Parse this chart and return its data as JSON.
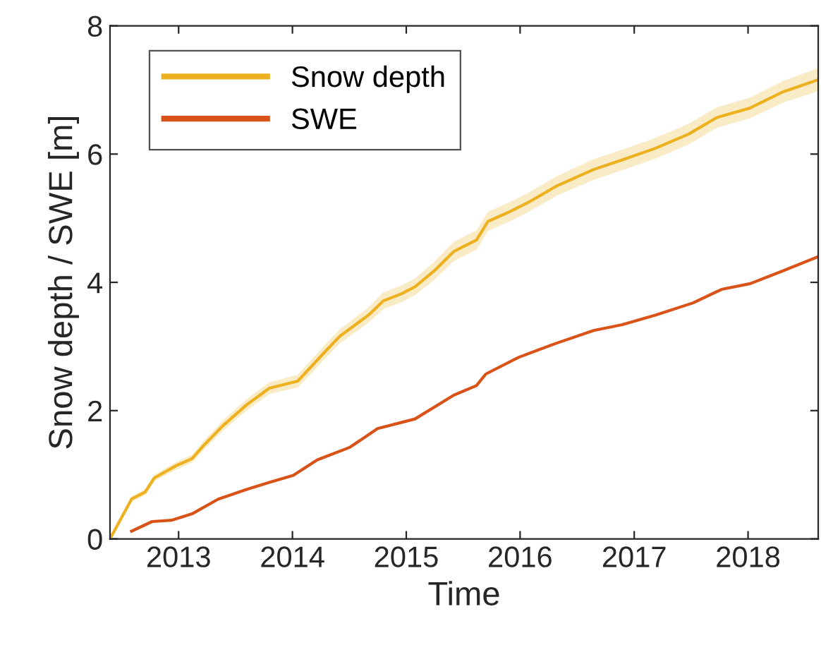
{
  "chart_data": {
    "type": "line",
    "xlabel": "Time",
    "ylabel": "Snow depth / SWE [m]",
    "xlim": [
      "2012-05-26",
      "2018-08-14"
    ],
    "ylim": [
      0,
      8
    ],
    "yticks": [
      0,
      2,
      4,
      6,
      8
    ],
    "xticks": [
      {
        "value": "2013-01-01",
        "label": "2013"
      },
      {
        "value": "2014-01-01",
        "label": "2014"
      },
      {
        "value": "2015-01-01",
        "label": "2015"
      },
      {
        "value": "2016-01-01",
        "label": "2016"
      },
      {
        "value": "2017-01-01",
        "label": "2017"
      },
      {
        "value": "2018-01-01",
        "label": "2018"
      }
    ],
    "grid": false,
    "legend": "top left",
    "line_style": "solid",
    "marker": "none",
    "series": [
      {
        "name": "Snow depth",
        "color": "#edb120",
        "x": [
          "2012-05-26",
          "2012-08-03",
          "2012-09-16",
          "2012-10-15",
          "2012-12-24",
          "2013-02-13",
          "2013-03-25",
          "2013-05-22",
          "2013-08-07",
          "2013-10-19",
          "2014-01-18",
          "2014-04-12",
          "2014-06-02",
          "2014-09-02",
          "2014-10-19",
          "2014-12-16",
          "2015-01-29",
          "2015-04-01",
          "2015-06-02",
          "2015-08-14",
          "2015-09-20",
          "2015-11-28",
          "2016-01-29",
          "2016-04-26",
          "2016-08-24",
          "2016-11-24",
          "2017-03-10",
          "2017-06-24",
          "2017-09-23",
          "2018-01-08",
          "2018-04-23",
          "2018-08-14"
        ],
        "values": [
          0,
          0.62,
          0.73,
          0.95,
          1.14,
          1.25,
          1.47,
          1.76,
          2.09,
          2.35,
          2.46,
          2.9,
          3.16,
          3.49,
          3.71,
          3.82,
          3.93,
          4.18,
          4.48,
          4.66,
          4.95,
          5.1,
          5.25,
          5.5,
          5.76,
          5.91,
          6.09,
          6.31,
          6.57,
          6.72,
          6.97,
          7.16
        ],
        "lower": [
          0,
          0.58,
          0.68,
          0.9,
          1.08,
          1.19,
          1.4,
          1.68,
          2.0,
          2.26,
          2.36,
          2.79,
          3.05,
          3.37,
          3.58,
          3.69,
          3.8,
          4.04,
          4.33,
          4.51,
          4.8,
          4.95,
          5.1,
          5.35,
          5.6,
          5.75,
          5.93,
          6.15,
          6.41,
          6.56,
          6.8,
          6.98
        ],
        "upper": [
          0,
          0.66,
          0.78,
          1.0,
          1.2,
          1.31,
          1.54,
          1.84,
          2.18,
          2.44,
          2.56,
          3.01,
          3.27,
          3.61,
          3.84,
          3.95,
          4.06,
          4.32,
          4.63,
          4.81,
          5.1,
          5.25,
          5.4,
          5.65,
          5.92,
          6.07,
          6.25,
          6.47,
          6.73,
          6.88,
          7.14,
          7.34
        ]
      },
      {
        "name": "SWE",
        "color": "#d95319",
        "x": [
          "2012-08-03",
          "2012-10-08",
          "2012-12-09",
          "2013-02-13",
          "2013-05-08",
          "2013-08-07",
          "2013-10-19",
          "2014-01-04",
          "2014-03-21",
          "2014-07-05",
          "2014-10-01",
          "2015-01-29",
          "2015-06-02",
          "2015-08-14",
          "2015-09-13",
          "2015-12-27",
          "2016-04-26",
          "2016-08-24",
          "2016-11-24",
          "2017-03-10",
          "2017-07-09",
          "2017-10-08",
          "2018-01-08",
          "2018-04-23",
          "2018-08-14"
        ],
        "values": [
          0.12,
          0.27,
          0.29,
          0.39,
          0.62,
          0.77,
          0.88,
          0.99,
          1.23,
          1.43,
          1.72,
          1.87,
          2.24,
          2.39,
          2.57,
          2.83,
          3.05,
          3.25,
          3.34,
          3.49,
          3.68,
          3.89,
          3.98,
          4.18,
          4.4
        ]
      }
    ]
  }
}
